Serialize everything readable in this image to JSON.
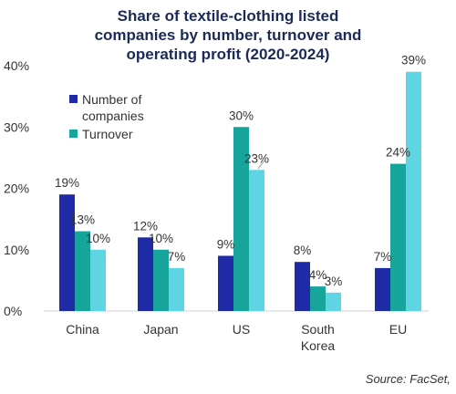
{
  "chart_data": {
    "type": "bar",
    "title_lines": [
      "Share of textile-clothing listed",
      "companies by number, turnover and",
      "operating profit (2020-2024)"
    ],
    "categories": [
      [
        "China"
      ],
      [
        "Japan"
      ],
      [
        "US"
      ],
      [
        "South",
        "Korea"
      ],
      [
        "EU"
      ]
    ],
    "series": [
      {
        "name_lines": [
          "Number of",
          "companies"
        ],
        "color": "#1f2aa6",
        "values": [
          19,
          12,
          9,
          8,
          7
        ]
      },
      {
        "name_lines": [
          "Turnover"
        ],
        "color": "#16a49b",
        "values": [
          13,
          10,
          30,
          4,
          24
        ]
      },
      {
        "name_lines": [],
        "color": "#5fd4e2",
        "values": [
          10,
          7,
          23,
          3,
          39
        ]
      }
    ],
    "data_labels": [
      [
        "19%",
        "12%",
        "9%",
        "8%",
        "7%"
      ],
      [
        "13%",
        "10%",
        "30%",
        "4%",
        "24%"
      ],
      [
        "10%",
        "7%",
        "23%",
        "3%",
        "39%"
      ]
    ],
    "y_ticks": [
      {
        "value": 0,
        "label": "0%"
      },
      {
        "value": 10,
        "label": "10%"
      },
      {
        "value": 20,
        "label": "20%"
      },
      {
        "value": 30,
        "label": "30%"
      },
      {
        "value": 40,
        "label": "40%"
      }
    ],
    "ylim": [
      0,
      40
    ],
    "grid": false,
    "legend_position": "top-left",
    "source": "Source: FacSet,"
  }
}
